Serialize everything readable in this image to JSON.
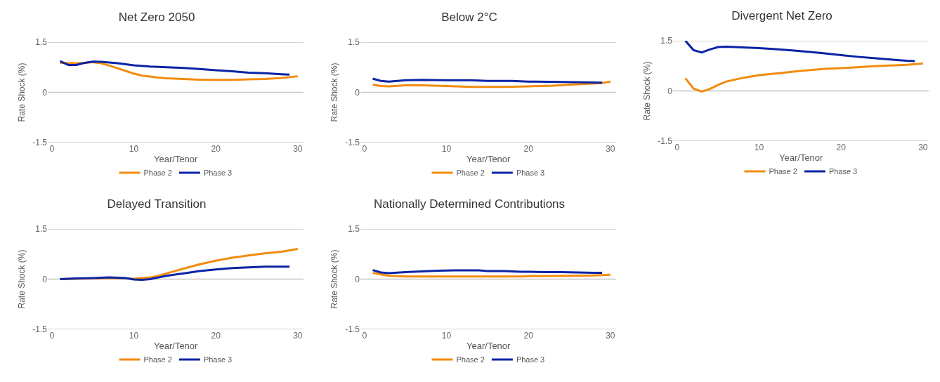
{
  "chart_data": [
    {
      "type": "line",
      "title": "Net Zero 2050",
      "xlabel": "Year/Tenor",
      "ylabel": "Rate Shock (%)",
      "xlim": [
        -0.5,
        30.7
      ],
      "xticks": [
        0,
        10,
        20,
        30
      ],
      "ylim": [
        -1.5,
        1.5
      ],
      "yticks": [
        -1.5,
        0,
        1.5
      ],
      "grid": "y",
      "legend": "bottom",
      "marker": "none",
      "line_style": "solid",
      "series": [
        {
          "name": "Phase 2",
          "color": "#f28c0f",
          "x": [
            1,
            2,
            3,
            4,
            5,
            6,
            7,
            8,
            9,
            10,
            11,
            12,
            13,
            14,
            16,
            18,
            20,
            22,
            24,
            26,
            28,
            30
          ],
          "values": [
            0.88,
            0.87,
            0.87,
            0.88,
            0.9,
            0.87,
            0.8,
            0.72,
            0.64,
            0.56,
            0.5,
            0.47,
            0.44,
            0.42,
            0.4,
            0.38,
            0.37,
            0.37,
            0.39,
            0.4,
            0.43,
            0.48
          ]
        },
        {
          "name": "Phase 3",
          "color": "#0a23a6",
          "x": [
            1,
            2,
            3,
            4,
            5,
            6,
            8,
            10,
            12,
            14,
            16,
            18,
            20,
            22,
            24,
            26,
            28,
            29
          ],
          "values": [
            0.93,
            0.82,
            0.82,
            0.88,
            0.92,
            0.91,
            0.87,
            0.81,
            0.77,
            0.75,
            0.73,
            0.7,
            0.66,
            0.63,
            0.59,
            0.57,
            0.54,
            0.53
          ]
        }
      ]
    },
    {
      "type": "line",
      "title": "Below 2°C",
      "xlabel": "Year/Tenor",
      "ylabel": "Rate Shock (%)",
      "xlim": [
        -0.5,
        30.7
      ],
      "xticks": [
        0,
        10,
        20,
        30
      ],
      "ylim": [
        -1.5,
        1.5
      ],
      "yticks": [
        -1.5,
        0,
        1.5
      ],
      "grid": "y",
      "legend": "bottom",
      "marker": "none",
      "line_style": "solid",
      "series": [
        {
          "name": "Phase 2",
          "color": "#f28c0f",
          "x": [
            1,
            2,
            3,
            5,
            7,
            10,
            13,
            17,
            20,
            23,
            26,
            29,
            30
          ],
          "values": [
            0.23,
            0.19,
            0.18,
            0.21,
            0.21,
            0.19,
            0.16,
            0.16,
            0.18,
            0.2,
            0.24,
            0.28,
            0.32
          ]
        },
        {
          "name": "Phase 3",
          "color": "#0a23a6",
          "x": [
            1,
            2,
            3,
            5,
            7,
            10,
            13,
            15,
            18,
            20,
            24,
            27,
            29
          ],
          "values": [
            0.41,
            0.34,
            0.32,
            0.36,
            0.37,
            0.36,
            0.36,
            0.34,
            0.34,
            0.32,
            0.31,
            0.3,
            0.29
          ]
        }
      ]
    },
    {
      "type": "line",
      "title": "Divergent Net Zero",
      "xlabel": "Year/Tenor",
      "ylabel": "Rate Shock (%)",
      "xlim": [
        -0.5,
        30.7
      ],
      "xticks": [
        0,
        10,
        20,
        30
      ],
      "ylim": [
        -1.5,
        1.5
      ],
      "yticks": [
        -1.5,
        0,
        1.5
      ],
      "grid": "y",
      "legend": "bottom",
      "marker": "none",
      "line_style": "solid",
      "series": [
        {
          "name": "Phase 2",
          "color": "#f28c0f",
          "x": [
            1,
            2,
            3,
            4,
            5,
            6,
            8,
            10,
            12,
            14,
            16,
            18,
            20,
            22,
            24,
            26,
            28,
            30
          ],
          "values": [
            0.38,
            0.07,
            -0.02,
            0.06,
            0.18,
            0.28,
            0.39,
            0.47,
            0.52,
            0.57,
            0.62,
            0.66,
            0.68,
            0.71,
            0.74,
            0.76,
            0.78,
            0.82
          ]
        },
        {
          "name": "Phase 3",
          "color": "#0a23a6",
          "x": [
            1,
            2,
            3,
            4,
            5,
            6,
            8,
            10,
            12,
            14,
            16,
            18,
            20,
            22,
            24,
            26,
            28,
            29
          ],
          "values": [
            1.5,
            1.22,
            1.15,
            1.24,
            1.31,
            1.32,
            1.3,
            1.28,
            1.25,
            1.21,
            1.17,
            1.12,
            1.07,
            1.02,
            0.98,
            0.94,
            0.9,
            0.89
          ]
        }
      ]
    },
    {
      "type": "line",
      "title": "Delayed Transition",
      "xlabel": "Year/Tenor",
      "ylabel": "Rate Shock (%)",
      "xlim": [
        -0.5,
        30.7
      ],
      "xticks": [
        0,
        10,
        20,
        30
      ],
      "ylim": [
        -1.5,
        1.5
      ],
      "yticks": [
        -1.5,
        0,
        1.5
      ],
      "grid": "y",
      "legend": "bottom",
      "marker": "none",
      "line_style": "solid",
      "series": [
        {
          "name": "Phase 2",
          "color": "#f28c0f",
          "x": [
            1,
            5,
            8,
            10,
            11,
            12,
            13,
            14,
            16,
            18,
            20,
            22,
            24,
            26,
            28,
            30
          ],
          "values": [
            0,
            0.02,
            0.03,
            0.01,
            0.03,
            0.05,
            0.1,
            0.17,
            0.31,
            0.44,
            0.55,
            0.64,
            0.71,
            0.77,
            0.82,
            0.9
          ]
        },
        {
          "name": "Phase 3",
          "color": "#0a23a6",
          "x": [
            1,
            3,
            5,
            7,
            9,
            10,
            11,
            12,
            13,
            14,
            16,
            18,
            20,
            22,
            24,
            26,
            29
          ],
          "values": [
            0,
            0.02,
            0.03,
            0.05,
            0.03,
            -0.01,
            -0.02,
            0,
            0.05,
            0.1,
            0.17,
            0.24,
            0.29,
            0.33,
            0.35,
            0.37,
            0.37
          ]
        }
      ]
    },
    {
      "type": "line",
      "title": "Nationally Determined Contributions",
      "xlabel": "Year/Tenor",
      "ylabel": "Rate Shock (%)",
      "xlim": [
        -0.5,
        30.7
      ],
      "xticks": [
        0,
        10,
        20,
        30
      ],
      "ylim": [
        -1.5,
        1.5
      ],
      "yticks": [
        -1.5,
        0,
        1.5
      ],
      "grid": "y",
      "legend": "bottom",
      "marker": "none",
      "line_style": "solid",
      "series": [
        {
          "name": "Phase 2",
          "color": "#f28c0f",
          "x": [
            1,
            2,
            3,
            5,
            10,
            15,
            19,
            20,
            25,
            28,
            30
          ],
          "values": [
            0.19,
            0.14,
            0.1,
            0.08,
            0.08,
            0.08,
            0.08,
            0.09,
            0.1,
            0.11,
            0.13
          ]
        },
        {
          "name": "Phase 3",
          "color": "#0a23a6",
          "x": [
            1,
            2,
            3,
            5,
            7,
            9,
            11,
            14,
            15,
            17,
            19,
            20,
            22,
            24,
            26,
            28,
            29
          ],
          "values": [
            0.27,
            0.2,
            0.18,
            0.21,
            0.23,
            0.25,
            0.26,
            0.26,
            0.24,
            0.24,
            0.22,
            0.22,
            0.21,
            0.21,
            0.2,
            0.19,
            0.19
          ]
        }
      ]
    }
  ]
}
